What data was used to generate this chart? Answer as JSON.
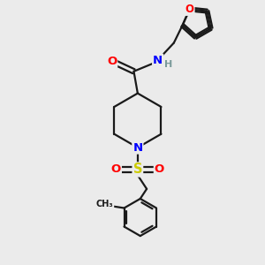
{
  "bg_color": "#ebebeb",
  "bond_color": "#1a1a1a",
  "bond_width": 1.6,
  "atom_colors": {
    "O": "#ff0000",
    "N": "#0000ff",
    "S": "#cccc00",
    "H": "#7a9a9a",
    "C": "#1a1a1a"
  },
  "font_size": 8.5,
  "fig_size": [
    3.0,
    3.0
  ],
  "dpi": 100
}
